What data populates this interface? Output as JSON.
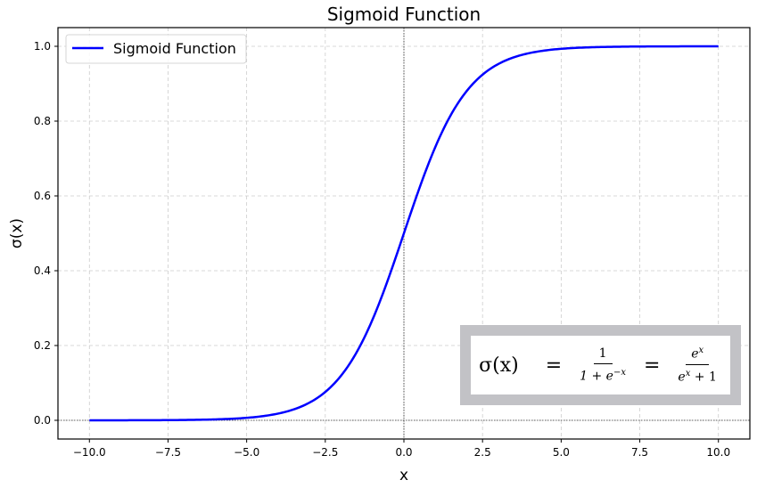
{
  "chart_data": {
    "type": "line",
    "title": "Sigmoid Function",
    "xlabel": "x",
    "ylabel": "σ(x)",
    "xlim": [
      -11,
      11
    ],
    "ylim": [
      -0.05,
      1.05
    ],
    "grid": true,
    "legend_position": "upper left",
    "x_ticks": [
      "−10.0",
      "−7.5",
      "−5.0",
      "−2.5",
      "0.0",
      "2.5",
      "5.0",
      "7.5",
      "10.0"
    ],
    "y_ticks": [
      "0.0",
      "0.2",
      "0.4",
      "0.6",
      "0.8",
      "1.0"
    ],
    "series": [
      {
        "name": "Sigmoid Function",
        "color": "#0000ff",
        "function": "1/(1+exp(-x))",
        "x": [
          -10,
          -7.5,
          -5,
          -4,
          -3,
          -2.5,
          -2,
          -1,
          0,
          1,
          2,
          2.5,
          3,
          4,
          5,
          7.5,
          10
        ],
        "y": [
          0.0,
          0.0006,
          0.0067,
          0.018,
          0.0474,
          0.0759,
          0.1192,
          0.2689,
          0.5,
          0.7311,
          0.8808,
          0.9241,
          0.9526,
          0.982,
          0.9933,
          0.9994,
          1.0
        ]
      }
    ],
    "reference_lines": [
      {
        "orientation": "horizontal",
        "y": 0,
        "style": "dotted"
      },
      {
        "orientation": "vertical",
        "x": 0,
        "style": "dotted"
      }
    ],
    "annotations": [
      {
        "type": "formula",
        "text": "σ(x) = 1/(1+e^(−x)) = e^x/(e^x+1)"
      }
    ]
  },
  "formula": {
    "lhs": "σ(x)",
    "eq": "=",
    "frac1_num": "1",
    "frac1_den_base": "1 + e",
    "frac1_den_exp": "−x",
    "frac2_num_base": "e",
    "frac2_num_exp": "x",
    "frac2_den_base": "e",
    "frac2_den_exp": "x",
    "frac2_den_tail": " + 1"
  },
  "colors": {
    "line": "#0000ff",
    "formula_border": "#c2c2c6",
    "grid": "#cccccc"
  }
}
